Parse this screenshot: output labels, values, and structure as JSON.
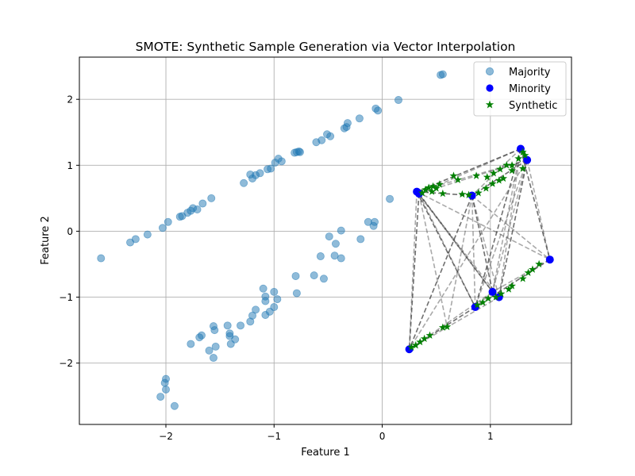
{
  "chart_data": {
    "type": "scatter",
    "title": "SMOTE: Synthetic Sample Generation via Vector Interpolation",
    "xlabel": "Feature 1",
    "ylabel": "Feature 2",
    "xlim": [
      -2.8,
      1.75
    ],
    "ylim": [
      -2.93,
      2.64
    ],
    "xticks": [
      -2,
      -1,
      0,
      1
    ],
    "yticks": [
      -2,
      -1,
      0,
      1,
      2
    ],
    "grid": true,
    "legend_position": "top-right",
    "series": [
      {
        "name": "Majority",
        "marker": "circle",
        "color": "#1f77b4",
        "alpha": 0.5,
        "points": [
          [
            -2.6,
            -0.41
          ],
          [
            -2.33,
            -0.17
          ],
          [
            -2.28,
            -0.12
          ],
          [
            -2.17,
            -0.05
          ],
          [
            -2.03,
            0.05
          ],
          [
            -1.98,
            0.14
          ],
          [
            -1.87,
            0.22
          ],
          [
            -1.85,
            0.23
          ],
          [
            -1.8,
            0.28
          ],
          [
            -1.77,
            0.31
          ],
          [
            -1.75,
            0.35
          ],
          [
            -1.71,
            0.33
          ],
          [
            -1.66,
            0.42
          ],
          [
            -1.58,
            0.5
          ],
          [
            -1.28,
            0.73
          ],
          [
            -1.22,
            0.86
          ],
          [
            -1.2,
            0.8
          ],
          [
            -1.17,
            0.85
          ],
          [
            -1.13,
            0.88
          ],
          [
            -1.06,
            0.94
          ],
          [
            -1.03,
            0.95
          ],
          [
            -0.99,
            1.04
          ],
          [
            -0.96,
            1.1
          ],
          [
            -0.93,
            1.06
          ],
          [
            -0.81,
            1.19
          ],
          [
            -0.79,
            1.2
          ],
          [
            -0.77,
            1.21
          ],
          [
            -0.76,
            1.2
          ],
          [
            -0.61,
            1.35
          ],
          [
            -0.56,
            1.38
          ],
          [
            -0.51,
            1.47
          ],
          [
            -0.48,
            1.44
          ],
          [
            -0.35,
            1.56
          ],
          [
            -0.33,
            1.58
          ],
          [
            -0.32,
            1.64
          ],
          [
            -0.21,
            1.71
          ],
          [
            -0.06,
            1.86
          ],
          [
            -0.04,
            1.83
          ],
          [
            0.15,
            1.99
          ],
          [
            0.54,
            2.37
          ],
          [
            0.56,
            2.38
          ],
          [
            0.07,
            0.49
          ],
          [
            -0.13,
            0.14
          ],
          [
            -0.07,
            0.14
          ],
          [
            -0.08,
            0.08
          ],
          [
            -0.2,
            -0.12
          ],
          [
            -0.38,
            0.01
          ],
          [
            -0.49,
            -0.08
          ],
          [
            -0.43,
            -0.19
          ],
          [
            -0.38,
            -0.41
          ],
          [
            -0.57,
            -0.38
          ],
          [
            -0.44,
            -0.37
          ],
          [
            -0.63,
            -0.67
          ],
          [
            -0.54,
            -0.72
          ],
          [
            -0.8,
            -0.68
          ],
          [
            -0.79,
            -0.94
          ],
          [
            -1.1,
            -0.87
          ],
          [
            -1.0,
            -0.92
          ],
          [
            -1.08,
            -0.99
          ],
          [
            -0.97,
            -1.03
          ],
          [
            -1.08,
            -1.06
          ],
          [
            -1.0,
            -1.15
          ],
          [
            -1.04,
            -1.22
          ],
          [
            -1.17,
            -1.19
          ],
          [
            -1.08,
            -1.27
          ],
          [
            -1.2,
            -1.28
          ],
          [
            -1.22,
            -1.37
          ],
          [
            -1.31,
            -1.43
          ],
          [
            -1.43,
            -1.43
          ],
          [
            -1.56,
            -1.44
          ],
          [
            -1.55,
            -1.5
          ],
          [
            -1.41,
            -1.55
          ],
          [
            -1.41,
            -1.59
          ],
          [
            -1.36,
            -1.64
          ],
          [
            -1.67,
            -1.58
          ],
          [
            -1.69,
            -1.61
          ],
          [
            -1.4,
            -1.71
          ],
          [
            -1.54,
            -1.75
          ],
          [
            -1.77,
            -1.71
          ],
          [
            -1.6,
            -1.81
          ],
          [
            -1.56,
            -1.92
          ],
          [
            -2.0,
            -2.24
          ],
          [
            -2.01,
            -2.3
          ],
          [
            -2.0,
            -2.4
          ],
          [
            -2.05,
            -2.51
          ],
          [
            -1.92,
            -2.65
          ]
        ]
      },
      {
        "name": "Minority",
        "marker": "circle",
        "color": "#0000ff",
        "alpha": 1.0,
        "points": [
          [
            1.28,
            1.25
          ],
          [
            1.34,
            1.08
          ],
          [
            0.32,
            0.6
          ],
          [
            0.34,
            0.57
          ],
          [
            0.83,
            0.54
          ],
          [
            1.55,
            -0.43
          ],
          [
            1.02,
            -0.92
          ],
          [
            1.08,
            -1.0
          ],
          [
            0.86,
            -1.15
          ],
          [
            0.25,
            -1.79
          ]
        ]
      },
      {
        "name": "Synthetic",
        "marker": "star",
        "color": "#008000",
        "alpha": 1.0,
        "points": [
          [
            1.3,
            1.2
          ],
          [
            1.32,
            1.15
          ],
          [
            1.26,
            1.1
          ],
          [
            1.2,
            1.0
          ],
          [
            1.15,
            1.0
          ],
          [
            1.09,
            0.94
          ],
          [
            1.03,
            0.88
          ],
          [
            0.97,
            0.82
          ],
          [
            0.87,
            0.84
          ],
          [
            0.66,
            0.84
          ],
          [
            0.7,
            0.78
          ],
          [
            0.53,
            0.71
          ],
          [
            0.47,
            0.68
          ],
          [
            0.43,
            0.66
          ],
          [
            0.5,
            0.65
          ],
          [
            0.4,
            0.63
          ],
          [
            0.37,
            0.58
          ],
          [
            0.46,
            0.6
          ],
          [
            0.56,
            0.57
          ],
          [
            0.74,
            0.56
          ],
          [
            0.8,
            0.55
          ],
          [
            0.89,
            0.58
          ],
          [
            0.96,
            0.65
          ],
          [
            1.02,
            0.72
          ],
          [
            1.08,
            0.77
          ],
          [
            1.12,
            0.8
          ],
          [
            1.2,
            0.92
          ],
          [
            1.3,
            0.95
          ],
          [
            1.45,
            -0.5
          ],
          [
            1.39,
            -0.58
          ],
          [
            1.35,
            -0.63
          ],
          [
            1.3,
            -0.72
          ],
          [
            1.2,
            -0.83
          ],
          [
            1.17,
            -0.88
          ],
          [
            1.1,
            -0.95
          ],
          [
            1.05,
            -1.0
          ],
          [
            0.98,
            -1.02
          ],
          [
            0.93,
            -1.08
          ],
          [
            0.88,
            -1.12
          ],
          [
            0.6,
            -1.45
          ],
          [
            0.56,
            -1.46
          ],
          [
            0.44,
            -1.58
          ],
          [
            0.39,
            -1.63
          ],
          [
            0.35,
            -1.68
          ],
          [
            0.31,
            -1.73
          ],
          [
            0.27,
            -1.76
          ]
        ]
      }
    ],
    "interpolation_lines": {
      "color": "#404040",
      "style": "dashed",
      "segments": [
        [
          [
            1.28,
            1.25
          ],
          [
            0.32,
            0.6
          ]
        ],
        [
          [
            1.28,
            1.25
          ],
          [
            0.34,
            0.57
          ]
        ],
        [
          [
            1.28,
            1.25
          ],
          [
            0.83,
            0.54
          ]
        ],
        [
          [
            1.28,
            1.25
          ],
          [
            1.55,
            -0.43
          ]
        ],
        [
          [
            1.28,
            1.25
          ],
          [
            1.02,
            -0.92
          ]
        ],
        [
          [
            1.28,
            1.25
          ],
          [
            1.08,
            -1.0
          ]
        ],
        [
          [
            1.28,
            1.25
          ],
          [
            0.86,
            -1.15
          ]
        ],
        [
          [
            1.34,
            1.08
          ],
          [
            0.32,
            0.6
          ]
        ],
        [
          [
            1.34,
            1.08
          ],
          [
            0.34,
            0.57
          ]
        ],
        [
          [
            1.34,
            1.08
          ],
          [
            0.83,
            0.54
          ]
        ],
        [
          [
            1.34,
            1.08
          ],
          [
            1.55,
            -0.43
          ]
        ],
        [
          [
            1.34,
            1.08
          ],
          [
            1.02,
            -0.92
          ]
        ],
        [
          [
            1.34,
            1.08
          ],
          [
            1.08,
            -1.0
          ]
        ],
        [
          [
            1.34,
            1.08
          ],
          [
            0.86,
            -1.15
          ]
        ],
        [
          [
            1.34,
            1.08
          ],
          [
            0.25,
            -1.79
          ]
        ],
        [
          [
            0.32,
            0.6
          ],
          [
            0.83,
            0.54
          ]
        ],
        [
          [
            0.32,
            0.6
          ],
          [
            1.02,
            -0.92
          ]
        ],
        [
          [
            0.32,
            0.6
          ],
          [
            1.08,
            -1.0
          ]
        ],
        [
          [
            0.32,
            0.6
          ],
          [
            0.86,
            -1.15
          ]
        ],
        [
          [
            0.32,
            0.6
          ],
          [
            0.25,
            -1.79
          ]
        ],
        [
          [
            0.32,
            0.6
          ],
          [
            1.55,
            -0.43
          ]
        ],
        [
          [
            0.34,
            0.57
          ],
          [
            1.02,
            -0.92
          ]
        ],
        [
          [
            0.34,
            0.57
          ],
          [
            0.86,
            -1.15
          ]
        ],
        [
          [
            0.34,
            0.57
          ],
          [
            0.6,
            -1.45
          ]
        ],
        [
          [
            0.83,
            0.54
          ],
          [
            1.02,
            -0.92
          ]
        ],
        [
          [
            0.83,
            0.54
          ],
          [
            1.08,
            -1.0
          ]
        ],
        [
          [
            0.83,
            0.54
          ],
          [
            0.86,
            -1.15
          ]
        ],
        [
          [
            0.83,
            0.54
          ],
          [
            0.25,
            -1.79
          ]
        ],
        [
          [
            0.83,
            0.54
          ],
          [
            1.55,
            -0.43
          ]
        ],
        [
          [
            1.55,
            -0.43
          ],
          [
            1.02,
            -0.92
          ]
        ],
        [
          [
            1.55,
            -0.43
          ],
          [
            0.86,
            -1.15
          ]
        ],
        [
          [
            1.02,
            -0.92
          ],
          [
            0.25,
            -1.79
          ]
        ],
        [
          [
            1.08,
            -1.0
          ],
          [
            0.25,
            -1.79
          ]
        ],
        [
          [
            0.86,
            -1.15
          ],
          [
            0.25,
            -1.79
          ]
        ],
        [
          [
            1.02,
            -0.92
          ],
          [
            0.86,
            -1.15
          ]
        ],
        [
          [
            1.08,
            -1.0
          ],
          [
            1.02,
            -0.92
          ]
        ],
        [
          [
            0.34,
            0.57
          ],
          [
            0.25,
            -1.79
          ]
        ],
        [
          [
            0.83,
            0.54
          ],
          [
            0.6,
            -1.45
          ]
        ]
      ]
    }
  }
}
